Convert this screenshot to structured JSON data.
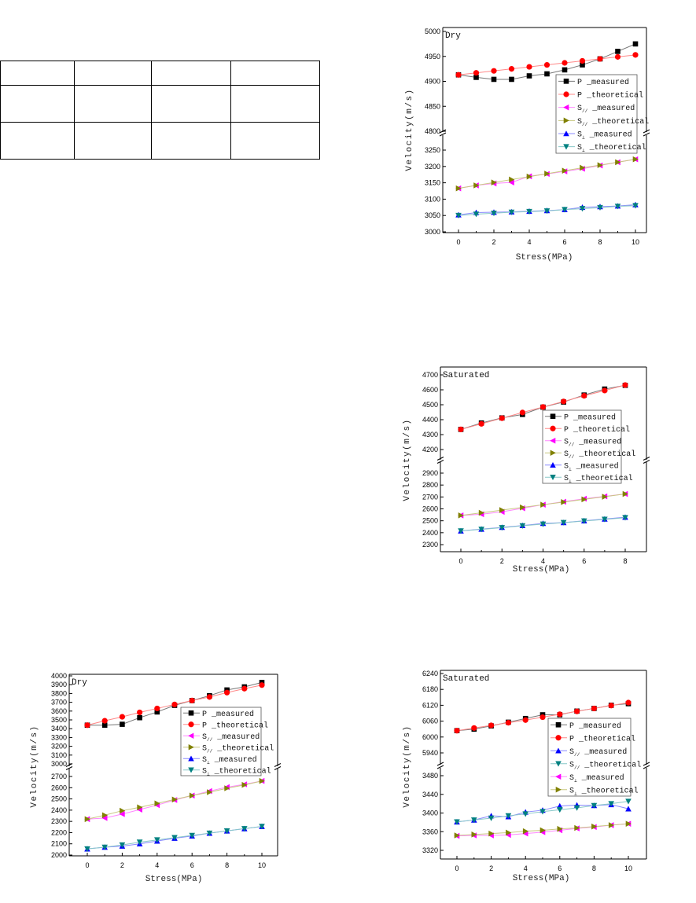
{
  "table": {
    "rows": [
      [
        "",
        "",
        "",
        ""
      ],
      [
        "",
        "",
        "",
        ""
      ],
      [
        "",
        "",
        "",
        ""
      ]
    ]
  },
  "chart_data": [
    {
      "type": "line",
      "title": "Dry",
      "xlabel": "Stress(MPa)",
      "ylabel": "Velocity(m/s)",
      "x": [
        0,
        1,
        2,
        3,
        4,
        5,
        6,
        7,
        8,
        9,
        10
      ],
      "x_ticks": [
        0,
        2,
        4,
        6,
        8,
        10
      ],
      "y_break": true,
      "upper_ticks": [
        4800,
        4850,
        4900,
        4950,
        5000
      ],
      "lower_ticks": [
        3000,
        3050,
        3100,
        3150,
        3200,
        3250
      ],
      "legend_position": "right",
      "series": [
        {
          "label": {
            "pre": "P",
            "sub": "",
            "post": " _measured"
          },
          "marker": "square",
          "color": "#000000",
          "line": "#777777",
          "values": [
            4913,
            4908,
            4904,
            4904,
            4911,
            4915,
            4923,
            4933,
            4945,
            4960,
            4975
          ]
        },
        {
          "label": {
            "pre": "P",
            "sub": "",
            "post": " _theoretical"
          },
          "marker": "circle",
          "color": "#ff0000",
          "line": "#ff8888",
          "values": [
            4913,
            4917,
            4921,
            4925,
            4929,
            4933,
            4937,
            4941,
            4945,
            4949,
            4953
          ]
        },
        {
          "label": {
            "pre": "S",
            "sub": "//",
            "post": " _measured"
          },
          "marker": "left",
          "color": "#ff00ff",
          "line": "#ff88ff",
          "values": [
            3133,
            3142,
            3148,
            3151,
            3170,
            3177,
            3185,
            3193,
            3203,
            3213,
            3222
          ]
        },
        {
          "label": {
            "pre": "S",
            "sub": "//",
            "post": " _theoretical"
          },
          "marker": "right",
          "color": "#808000",
          "line": "#c8c880",
          "values": [
            3133,
            3142,
            3151,
            3160,
            3169,
            3178,
            3187,
            3196,
            3204,
            3213,
            3222
          ]
        },
        {
          "label": {
            "pre": "S",
            "sub": "⊥",
            "post": " _measured"
          },
          "marker": "up",
          "color": "#0000ff",
          "line": "#8888ff",
          "values": [
            3052,
            3059,
            3060,
            3061,
            3063,
            3065,
            3068,
            3075,
            3077,
            3079,
            3083
          ]
        },
        {
          "label": {
            "pre": "S",
            "sub": "⊥",
            "post": " _theoretical"
          },
          "marker": "down",
          "color": "#008080",
          "line": "#88c8c8",
          "values": [
            3050,
            3054,
            3057,
            3060,
            3062,
            3064,
            3068,
            3071,
            3074,
            3078,
            3080
          ]
        }
      ]
    },
    {
      "type": "line",
      "title": "Saturated",
      "xlabel": "Stress(MPa)",
      "ylabel": "Velocity(m/s)",
      "x": [
        0,
        1,
        2,
        3,
        4,
        5,
        6,
        7,
        8
      ],
      "x_ticks": [
        0,
        2,
        4,
        6,
        8
      ],
      "y_break": true,
      "upper_ticks": [
        4200,
        4300,
        4400,
        4500,
        4600,
        4700
      ],
      "lower_ticks": [
        2300,
        2400,
        2500,
        2600,
        2700,
        2800,
        2900
      ],
      "legend_position": "right",
      "series": [
        {
          "label": {
            "pre": "P",
            "sub": "",
            "post": " _measured"
          },
          "marker": "square",
          "color": "#000000",
          "line": "#777777",
          "values": [
            4335,
            4378,
            4412,
            4435,
            4484,
            4518,
            4565,
            4605,
            4630
          ]
        },
        {
          "label": {
            "pre": "P",
            "sub": "",
            "post": " _theoretical"
          },
          "marker": "circle",
          "color": "#ff0000",
          "line": "#ff8888",
          "values": [
            4335,
            4372,
            4410,
            4448,
            4485,
            4522,
            4560,
            4595,
            4632
          ]
        },
        {
          "label": {
            "pre": "S",
            "sub": "//",
            "post": " _measured"
          },
          "marker": "left",
          "color": "#ff00ff",
          "line": "#ff88ff",
          "values": [
            2545,
            2555,
            2575,
            2605,
            2635,
            2660,
            2685,
            2705,
            2725
          ]
        },
        {
          "label": {
            "pre": "S",
            "sub": "//",
            "post": " _theoretical"
          },
          "marker": "right",
          "color": "#808000",
          "line": "#c8c880",
          "values": [
            2545,
            2567,
            2590,
            2612,
            2635,
            2657,
            2680,
            2702,
            2725
          ]
        },
        {
          "label": {
            "pre": "S",
            "sub": "⊥",
            "post": " _measured"
          },
          "marker": "up",
          "color": "#0000ff",
          "line": "#8888ff",
          "values": [
            2415,
            2430,
            2445,
            2460,
            2478,
            2485,
            2500,
            2515,
            2530
          ]
        },
        {
          "label": {
            "pre": "S",
            "sub": "⊥",
            "post": " _theoretical"
          },
          "marker": "down",
          "color": "#008080",
          "line": "#88c8c8",
          "values": [
            2415,
            2428,
            2442,
            2458,
            2472,
            2485,
            2498,
            2512,
            2526
          ]
        }
      ]
    },
    {
      "type": "line",
      "title": "Dry",
      "xlabel": "Stress(MPa)",
      "ylabel": "Velocity(m/s)",
      "x": [
        0,
        1,
        2,
        3,
        4,
        5,
        6,
        7,
        8,
        9,
        10
      ],
      "x_ticks": [
        0,
        2,
        4,
        6,
        8,
        10
      ],
      "y_break": true,
      "upper_ticks": [
        3000,
        3100,
        3200,
        3300,
        3400,
        3500,
        3600,
        3700,
        3800,
        3900,
        4000
      ],
      "lower_ticks": [
        2000,
        2100,
        2200,
        2300,
        2400,
        2500,
        2600,
        2700
      ],
      "legend_position": "right",
      "series": [
        {
          "label": {
            "pre": "P",
            "sub": "",
            "post": " _measured"
          },
          "marker": "square",
          "color": "#000000",
          "line": "#777777",
          "values": [
            3440,
            3440,
            3450,
            3525,
            3590,
            3665,
            3720,
            3775,
            3840,
            3875,
            3925
          ]
        },
        {
          "label": {
            "pre": "P",
            "sub": "",
            "post": " _theoretical"
          },
          "marker": "circle",
          "color": "#ff0000",
          "line": "#ff8888",
          "values": [
            3440,
            3490,
            3535,
            3585,
            3630,
            3675,
            3720,
            3760,
            3810,
            3855,
            3895
          ]
        },
        {
          "label": {
            "pre": "S",
            "sub": "//",
            "post": " _measured"
          },
          "marker": "left",
          "color": "#ff00ff",
          "line": "#ff88ff",
          "values": [
            2320,
            2330,
            2365,
            2405,
            2445,
            2490,
            2530,
            2570,
            2605,
            2630,
            2660
          ]
        },
        {
          "label": {
            "pre": "S",
            "sub": "//",
            "post": " _theoretical"
          },
          "marker": "right",
          "color": "#808000",
          "line": "#c8c880",
          "values": [
            2320,
            2355,
            2395,
            2425,
            2460,
            2495,
            2530,
            2560,
            2595,
            2625,
            2660
          ]
        },
        {
          "label": {
            "pre": "S",
            "sub": "⊥",
            "post": " _measured"
          },
          "marker": "up",
          "color": "#0000ff",
          "line": "#8888ff",
          "values": [
            2055,
            2070,
            2080,
            2100,
            2125,
            2150,
            2170,
            2195,
            2215,
            2235,
            2255
          ]
        },
        {
          "label": {
            "pre": "S",
            "sub": "⊥",
            "post": " _theoretical"
          },
          "marker": "down",
          "color": "#008080",
          "line": "#88c8c8",
          "values": [
            2055,
            2070,
            2090,
            2115,
            2135,
            2155,
            2175,
            2195,
            2215,
            2235,
            2255
          ]
        }
      ]
    },
    {
      "type": "line",
      "title": "Saturated",
      "xlabel": "Stress(MPa)",
      "ylabel": "Velocity(m/s)",
      "x": [
        0,
        1,
        2,
        3,
        4,
        5,
        6,
        7,
        8,
        9,
        10
      ],
      "x_ticks": [
        0,
        2,
        4,
        6,
        8,
        10
      ],
      "y_break": true,
      "upper_ticks": [
        5940,
        6000,
        6060,
        6120,
        6180,
        6240
      ],
      "lower_ticks": [
        3320,
        3360,
        3400,
        3440,
        3480
      ],
      "legend_position": "right",
      "series": [
        {
          "label": {
            "pre": "P",
            "sub": "",
            "post": " _measured"
          },
          "marker": "square",
          "color": "#000000",
          "line": "#777777",
          "values": [
            6024,
            6030,
            6042,
            6056,
            6070,
            6084,
            6084,
            6098,
            6108,
            6120,
            6126
          ]
        },
        {
          "label": {
            "pre": "P",
            "sub": "",
            "post": " _theoretical"
          },
          "marker": "circle",
          "color": "#ff0000",
          "line": "#ff8888",
          "values": [
            6024,
            6034,
            6044,
            6054,
            6064,
            6075,
            6086,
            6097,
            6108,
            6119,
            6130
          ]
        },
        {
          "label": {
            "pre": "S",
            "sub": "//",
            "post": " _measured"
          },
          "marker": "up",
          "color": "#0000ff",
          "line": "#8888ff",
          "values": [
            3381,
            3385,
            3394,
            3392,
            3402,
            3406,
            3415,
            3417,
            3416,
            3418,
            3409
          ]
        },
        {
          "label": {
            "pre": "S",
            "sub": "//",
            "post": " _theoretical"
          },
          "marker": "down",
          "color": "#008080",
          "line": "#88c8c8",
          "values": [
            3381,
            3385,
            3389,
            3394,
            3398,
            3403,
            3407,
            3411,
            3416,
            3420,
            3425
          ]
        },
        {
          "label": {
            "pre": "S",
            "sub": "⊥",
            "post": " _measured"
          },
          "marker": "left",
          "color": "#ff00ff",
          "line": "#ff88ff",
          "values": [
            3351,
            3352,
            3352,
            3353,
            3356,
            3359,
            3363,
            3367,
            3370,
            3374,
            3377
          ]
        },
        {
          "label": {
            "pre": "S",
            "sub": "⊥",
            "post": " _theoretical"
          },
          "marker": "right",
          "color": "#808000",
          "line": "#c8c880",
          "values": [
            3352,
            3354,
            3356,
            3358,
            3361,
            3363,
            3366,
            3368,
            3371,
            3374,
            3377
          ]
        }
      ]
    }
  ]
}
